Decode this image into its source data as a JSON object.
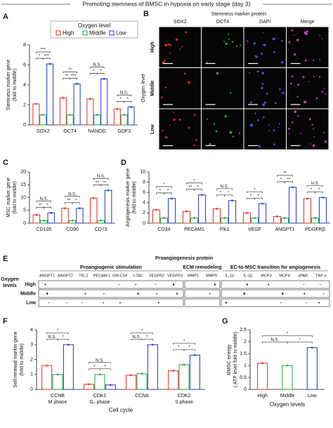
{
  "header": {
    "title": "Promoting stemness of BMSC in hypoxia on early stage (day 3)"
  },
  "panel_b": {
    "panel": "B",
    "title": "Stemness marker protein",
    "columns": [
      "SOX2",
      "OCT4",
      "DAPI",
      "Merge"
    ],
    "rows": [
      "High",
      "Middle",
      "Low"
    ],
    "row_title": "Oxygen level",
    "scale": "100 μm"
  },
  "panel_e": {
    "panel": "E",
    "title": "Proangiogenesis protein",
    "row_title": [
      "Oxygen",
      "levels"
    ],
    "rows": [
      "High",
      "Middle",
      "Low"
    ],
    "groups": [
      {
        "name": "Proangiogenic stimulation",
        "items": [
          "ANGPT1",
          "ANGPT2",
          "TIE-2",
          "PECAM-1",
          "GM-CSF",
          "I-TAC",
          "VEGFR2",
          "VEGFR3"
        ]
      },
      {
        "name": "ECM remodeling",
        "items": [
          "MMP1",
          "MMP9"
        ]
      },
      {
        "name": "EC-to-MSC transition for angiogenesis",
        "items": [
          "IL-1α",
          "IL-1β",
          "MCP3",
          "MCP4",
          "uPAR",
          "TNF-α"
        ]
      }
    ]
  },
  "chart_data": [
    {
      "panel": "A",
      "type": "bar",
      "legend_title": "Oxygen level",
      "ylabel": [
        "Stemness marker gene",
        "(fold to middle)"
      ],
      "categories": [
        "SOX2",
        "OCT4",
        "NANOG",
        "GDF3"
      ],
      "series": [
        {
          "name": "High",
          "color": "#e8403a",
          "values": [
            2.1,
            2.7,
            2.6,
            1.6
          ]
        },
        {
          "name": "Middle",
          "color": "#2eaa5a",
          "values": [
            1.0,
            1.0,
            1.0,
            1.0
          ]
        },
        {
          "name": "Low",
          "color": "#3348c4",
          "values": [
            6.1,
            4.1,
            4.6,
            1.8
          ]
        }
      ],
      "ylim": [
        0,
        8
      ],
      "yticks": [
        0,
        2,
        4,
        6,
        8
      ],
      "significance": [
        {
          "category": 0,
          "groups": [
            0,
            1
          ],
          "label": "*"
        },
        {
          "category": 0,
          "groups": [
            1,
            2
          ],
          "label": "***"
        },
        {
          "category": 0,
          "groups": [
            0,
            2
          ],
          "label": "***"
        },
        {
          "category": 1,
          "groups": [
            0,
            1
          ],
          "label": "**"
        },
        {
          "category": 1,
          "groups": [
            1,
            2
          ],
          "label": "***"
        },
        {
          "category": 1,
          "groups": [
            0,
            2
          ],
          "label": "**"
        },
        {
          "category": 2,
          "groups": [
            0,
            1
          ],
          "label": "*"
        },
        {
          "category": 2,
          "groups": [
            1,
            2
          ],
          "label": "*"
        },
        {
          "category": 2,
          "groups": [
            0,
            2
          ],
          "label": "N.S."
        },
        {
          "category": 3,
          "groups": [
            0,
            1
          ],
          "label": "*"
        },
        {
          "category": 3,
          "groups": [
            1,
            2
          ],
          "label": "*"
        },
        {
          "category": 3,
          "groups": [
            0,
            2
          ],
          "label": "N.S."
        }
      ]
    },
    {
      "panel": "C",
      "type": "bar",
      "ylabel": [
        "MSC marker gene",
        "(fold to middle)"
      ],
      "categories": [
        "CD105",
        "CD90",
        "CD73"
      ],
      "series": [
        {
          "color": "#e8403a",
          "values": [
            3.2,
            5.8,
            9.8
          ]
        },
        {
          "color": "#2eaa5a",
          "values": [
            1.0,
            1.0,
            1.0
          ]
        },
        {
          "color": "#3348c4",
          "values": [
            4.0,
            5.8,
            12.8
          ]
        }
      ],
      "ylim": [
        0,
        20
      ],
      "yticks": [
        0,
        5,
        10,
        15,
        20
      ],
      "significance": [
        {
          "category": 0,
          "groups": [
            0,
            1
          ],
          "label": "**"
        },
        {
          "category": 0,
          "groups": [
            1,
            2
          ],
          "label": "*"
        },
        {
          "category": 0,
          "groups": [
            0,
            2
          ],
          "label": "N.S."
        },
        {
          "category": 1,
          "groups": [
            0,
            1
          ],
          "label": "**"
        },
        {
          "category": 1,
          "groups": [
            1,
            2
          ],
          "label": "*"
        },
        {
          "category": 1,
          "groups": [
            0,
            2
          ],
          "label": "N.S."
        },
        {
          "category": 2,
          "groups": [
            0,
            1
          ],
          "label": "**"
        },
        {
          "category": 2,
          "groups": [
            1,
            2
          ],
          "label": "**"
        },
        {
          "category": 2,
          "groups": [
            0,
            2
          ],
          "label": "N.S."
        }
      ]
    },
    {
      "panel": "D",
      "type": "bar",
      "ylabel": [
        "Angiogenesis marker gene",
        "(fold to middle)"
      ],
      "categories": [
        "CD34",
        "PECAM1",
        "Flk1",
        "VEGF",
        "ANGPT1",
        "PDGFRβ"
      ],
      "series": [
        {
          "color": "#e8403a",
          "values": [
            2.6,
            2.3,
            2.8,
            2.0,
            1.3,
            4.8
          ]
        },
        {
          "color": "#2eaa5a",
          "values": [
            1.0,
            1.0,
            1.0,
            1.0,
            1.0,
            1.0
          ]
        },
        {
          "color": "#3348c4",
          "values": [
            4.8,
            5.5,
            4.4,
            3.8,
            7.0,
            5.0
          ]
        }
      ],
      "ylim": [
        0,
        10
      ],
      "yticks": [
        0,
        2,
        4,
        6,
        8,
        10
      ],
      "significance": [
        {
          "category": 0,
          "groups": [
            0,
            1
          ],
          "label": "*"
        },
        {
          "category": 0,
          "groups": [
            1,
            2
          ],
          "label": "*"
        },
        {
          "category": 0,
          "groups": [
            0,
            2
          ],
          "label": "*"
        },
        {
          "category": 1,
          "groups": [
            0,
            1
          ],
          "label": "**"
        },
        {
          "category": 1,
          "groups": [
            1,
            2
          ],
          "label": "*"
        },
        {
          "category": 1,
          "groups": [
            0,
            2
          ],
          "label": "*"
        },
        {
          "category": 2,
          "groups": [
            0,
            1
          ],
          "label": "*"
        },
        {
          "category": 2,
          "groups": [
            1,
            2
          ],
          "label": "*"
        },
        {
          "category": 2,
          "groups": [
            0,
            2
          ],
          "label": "N.S."
        },
        {
          "category": 3,
          "groups": [
            0,
            1
          ],
          "label": "*"
        },
        {
          "category": 3,
          "groups": [
            1,
            2
          ],
          "label": "*"
        },
        {
          "category": 3,
          "groups": [
            0,
            2
          ],
          "label": "*"
        },
        {
          "category": 4,
          "groups": [
            0,
            1
          ],
          "label": "*"
        },
        {
          "category": 4,
          "groups": [
            1,
            2
          ],
          "label": "**"
        },
        {
          "category": 4,
          "groups": [
            0,
            2
          ],
          "label": "**"
        },
        {
          "category": 5,
          "groups": [
            0,
            1
          ],
          "label": "*"
        },
        {
          "category": 5,
          "groups": [
            1,
            2
          ],
          "label": "*"
        },
        {
          "category": 5,
          "groups": [
            0,
            2
          ],
          "label": "N.S."
        }
      ]
    },
    {
      "panel": "F",
      "type": "bar",
      "ylabel": [
        "Self-renewal marker gene",
        "(fold to middle)"
      ],
      "xlabel": "Cell cycle",
      "categories": [
        "CCNB",
        "CDK1",
        "CCNA",
        "CDK2"
      ],
      "phases": [
        "M phase",
        "G₂ phase",
        null,
        "S phase"
      ],
      "series": [
        {
          "color": "#e8403a",
          "values": [
            1.6,
            0.35,
            0.95,
            1.25
          ]
        },
        {
          "color": "#2eaa5a",
          "values": [
            1.0,
            1.0,
            1.05,
            1.65
          ]
        },
        {
          "color": "#3348c4",
          "values": [
            3.0,
            0.3,
            3.0,
            2.3
          ]
        }
      ],
      "ylim": [
        0,
        4
      ],
      "yticks": [
        0,
        1,
        2,
        3,
        4
      ],
      "significance": [
        {
          "category": 0,
          "groups": [
            0,
            1
          ],
          "label": "N.S."
        },
        {
          "category": 0,
          "groups": [
            1,
            2
          ],
          "label": "*"
        },
        {
          "category": 0,
          "groups": [
            0,
            2
          ],
          "label": "*"
        },
        {
          "category": 1,
          "groups": [
            0,
            1
          ],
          "label": "*"
        },
        {
          "category": 1,
          "groups": [
            1,
            2
          ],
          "label": "*"
        },
        {
          "category": 1,
          "groups": [
            0,
            2
          ],
          "label": "N.S."
        },
        {
          "category": 2,
          "groups": [
            0,
            1
          ],
          "label": "N.S."
        },
        {
          "category": 2,
          "groups": [
            1,
            2
          ],
          "label": "*"
        },
        {
          "category": 2,
          "groups": [
            0,
            2
          ],
          "label": "*"
        },
        {
          "category": 3,
          "groups": [
            0,
            1
          ],
          "label": "*"
        },
        {
          "category": 3,
          "groups": [
            1,
            2
          ],
          "label": "*"
        },
        {
          "category": 3,
          "groups": [
            0,
            2
          ],
          "label": "*"
        }
      ]
    },
    {
      "panel": "G",
      "type": "bar",
      "ylabel": [
        "BMSC energy",
        "( ATP level fold to middle)"
      ],
      "xlabel": "Oxygen levels",
      "categories": [
        "High",
        "Middle",
        "Low"
      ],
      "colors": [
        "#e8403a",
        "#2eaa5a",
        "#3348c4"
      ],
      "values": [
        1.1,
        1.0,
        1.75
      ],
      "ylim": [
        0,
        2.5
      ],
      "yticks": [
        0,
        0.5,
        1,
        1.5,
        2,
        2.5
      ],
      "significance": [
        {
          "groups": [
            0,
            1
          ],
          "label": "N.S."
        },
        {
          "groups": [
            1,
            2
          ],
          "label": "*"
        },
        {
          "groups": [
            0,
            2
          ],
          "label": "*"
        }
      ]
    }
  ]
}
